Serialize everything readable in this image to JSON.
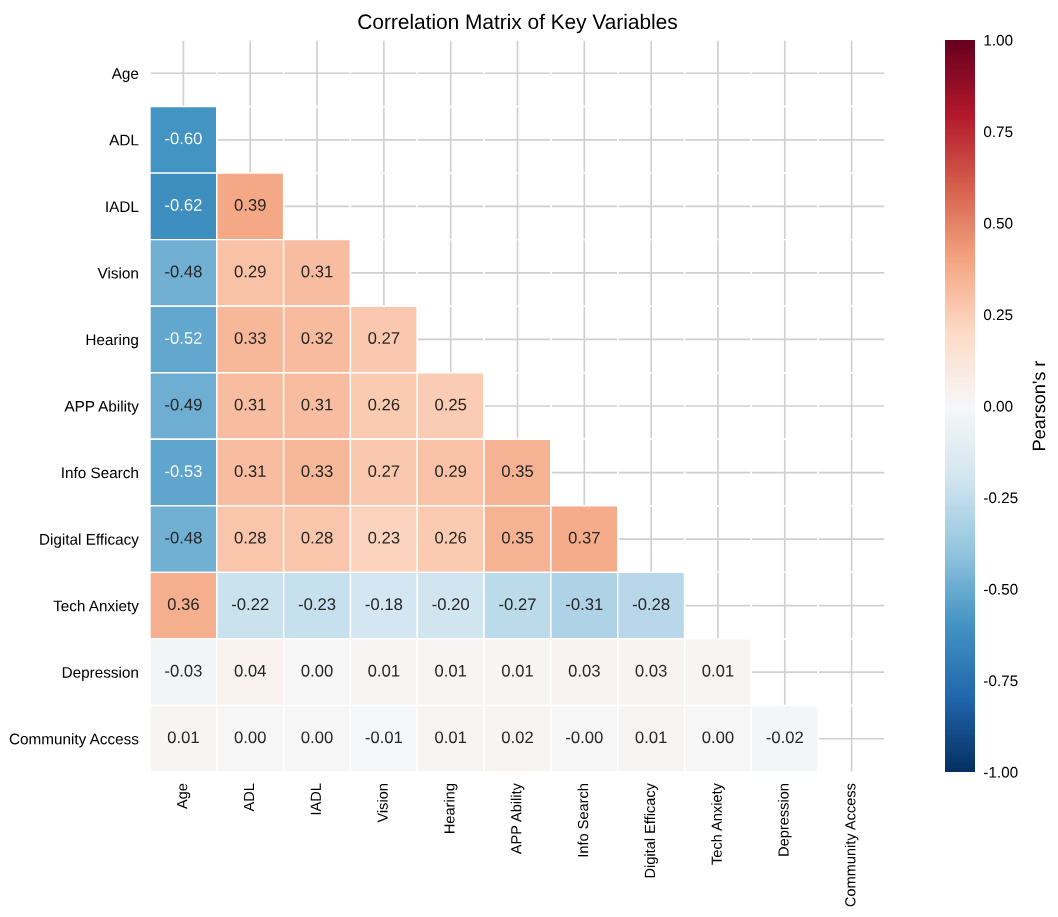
{
  "chart_data": {
    "type": "heatmap",
    "title": "Correlation Matrix of Key Variables",
    "categories": [
      "Age",
      "ADL",
      "IADL",
      "Vision",
      "Hearing",
      "APP Ability",
      "Info Search",
      "Digital Efficacy",
      "Tech Anxiety",
      "Depression",
      "Community Access"
    ],
    "y_categories": [
      "Age",
      "ADL",
      "IADL",
      "Vision",
      "Hearing",
      "APP Ability",
      "Info Search",
      "Digital Efficacy",
      "Tech Anxiety",
      "Depression",
      "Community Access"
    ],
    "cells": [
      [
        null,
        null,
        null,
        null,
        null,
        null,
        null,
        null,
        null,
        null,
        null
      ],
      [
        -0.6,
        null,
        null,
        null,
        null,
        null,
        null,
        null,
        null,
        null,
        null
      ],
      [
        -0.62,
        0.39,
        null,
        null,
        null,
        null,
        null,
        null,
        null,
        null,
        null
      ],
      [
        -0.48,
        0.29,
        0.31,
        null,
        null,
        null,
        null,
        null,
        null,
        null,
        null
      ],
      [
        -0.52,
        0.33,
        0.32,
        0.27,
        null,
        null,
        null,
        null,
        null,
        null,
        null
      ],
      [
        -0.49,
        0.31,
        0.31,
        0.26,
        0.25,
        null,
        null,
        null,
        null,
        null,
        null
      ],
      [
        -0.53,
        0.31,
        0.33,
        0.27,
        0.29,
        0.35,
        null,
        null,
        null,
        null,
        null
      ],
      [
        -0.48,
        0.28,
        0.28,
        0.23,
        0.26,
        0.35,
        0.37,
        null,
        null,
        null,
        null
      ],
      [
        0.36,
        -0.22,
        -0.23,
        -0.18,
        -0.2,
        -0.27,
        -0.31,
        -0.28,
        null,
        null,
        null
      ],
      [
        -0.03,
        0.04,
        0.0,
        0.01,
        0.01,
        0.01,
        0.03,
        0.03,
        0.01,
        null,
        null
      ],
      [
        0.01,
        0.0,
        0.0,
        -0.01,
        0.01,
        0.02,
        -0.0,
        0.01,
        0.0,
        -0.02,
        null
      ]
    ],
    "cell_labels": [
      [
        null,
        null,
        null,
        null,
        null,
        null,
        null,
        null,
        null,
        null,
        null
      ],
      [
        "-0.60",
        null,
        null,
        null,
        null,
        null,
        null,
        null,
        null,
        null,
        null
      ],
      [
        "-0.62",
        "0.39",
        null,
        null,
        null,
        null,
        null,
        null,
        null,
        null,
        null
      ],
      [
        "-0.48",
        "0.29",
        "0.31",
        null,
        null,
        null,
        null,
        null,
        null,
        null,
        null
      ],
      [
        "-0.52",
        "0.33",
        "0.32",
        "0.27",
        null,
        null,
        null,
        null,
        null,
        null,
        null
      ],
      [
        "-0.49",
        "0.31",
        "0.31",
        "0.26",
        "0.25",
        null,
        null,
        null,
        null,
        null,
        null
      ],
      [
        "-0.53",
        "0.31",
        "0.33",
        "0.27",
        "0.29",
        "0.35",
        null,
        null,
        null,
        null,
        null
      ],
      [
        "-0.48",
        "0.28",
        "0.28",
        "0.23",
        "0.26",
        "0.35",
        "0.37",
        null,
        null,
        null,
        null
      ],
      [
        "0.36",
        "-0.22",
        "-0.23",
        "-0.18",
        "-0.20",
        "-0.27",
        "-0.31",
        "-0.28",
        null,
        null,
        null
      ],
      [
        "-0.03",
        "0.04",
        "0.00",
        "0.01",
        "0.01",
        "0.01",
        "0.03",
        "0.03",
        "0.01",
        null,
        null
      ],
      [
        "0.01",
        "0.00",
        "0.00",
        "-0.01",
        "0.01",
        "0.02",
        "-0.00",
        "0.01",
        "0.00",
        "-0.02",
        null
      ]
    ],
    "clim": [
      -1.0,
      1.0
    ],
    "cticks": [
      {
        "value": -1.0,
        "label": "-1.00"
      },
      {
        "value": -0.75,
        "label": "-0.75"
      },
      {
        "value": -0.5,
        "label": "-0.50"
      },
      {
        "value": -0.25,
        "label": "-0.25"
      },
      {
        "value": 0.0,
        "label": "0.00"
      },
      {
        "value": 0.25,
        "label": "0.25"
      },
      {
        "value": 0.5,
        "label": "0.50"
      },
      {
        "value": 0.75,
        "label": "0.75"
      },
      {
        "value": 1.0,
        "label": "1.00"
      }
    ],
    "clabel": "Pearson's r",
    "grid": true
  }
}
